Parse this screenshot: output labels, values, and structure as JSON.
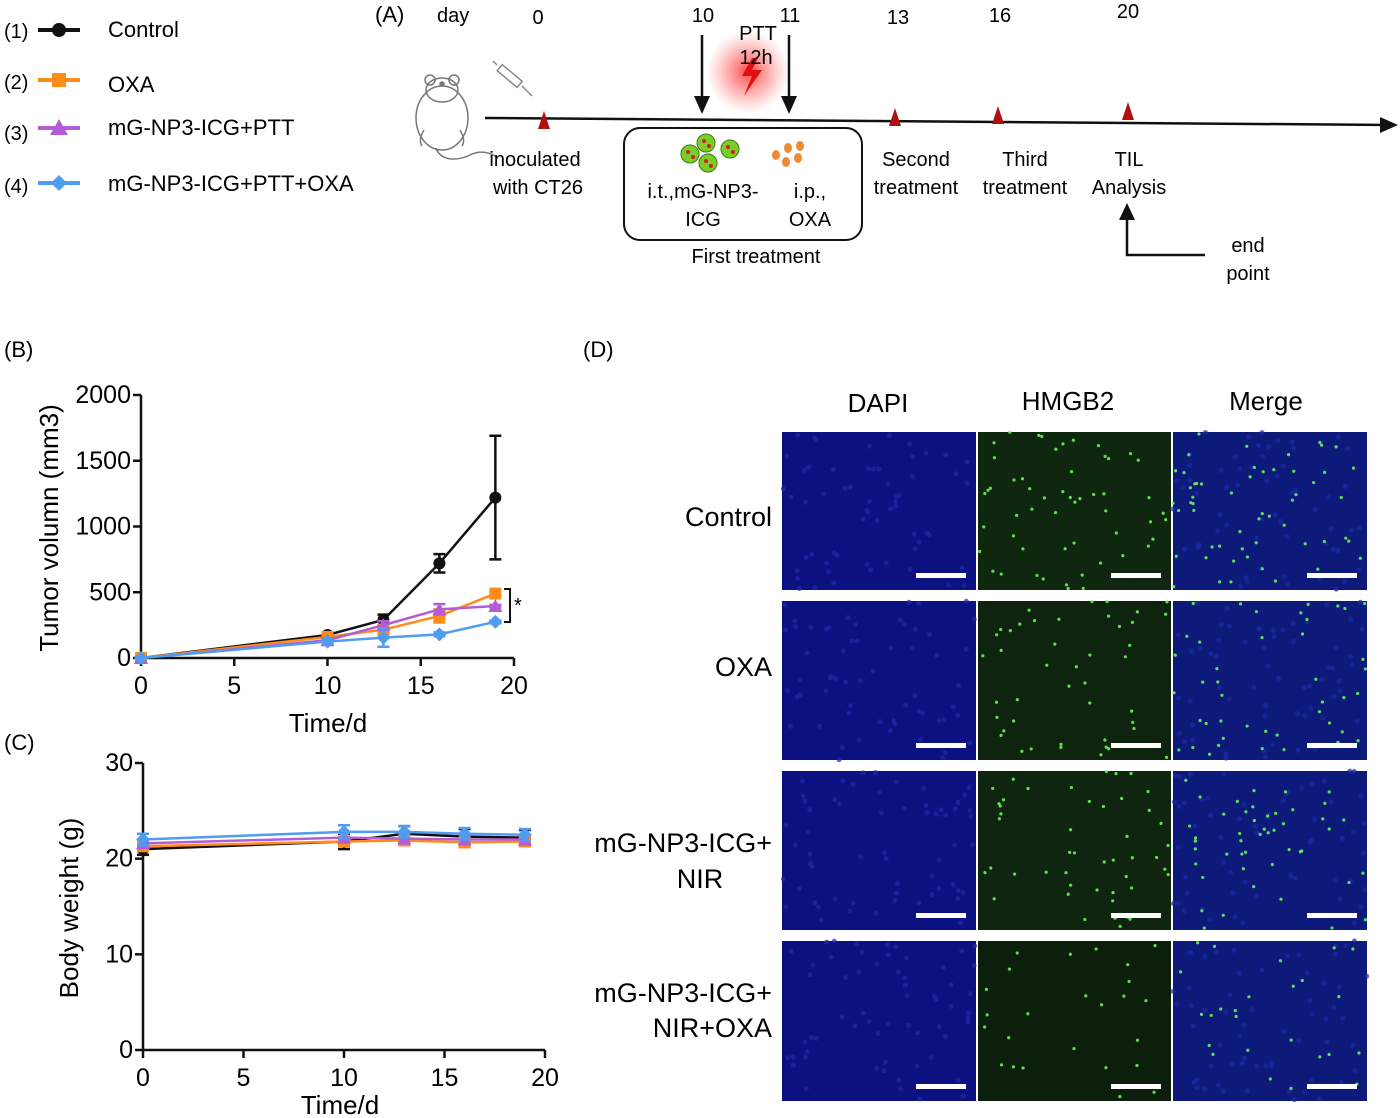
{
  "legend": {
    "items": [
      {
        "num": "(1)",
        "label": "Control",
        "color": "#111111",
        "marker": "circle"
      },
      {
        "num": "(2)",
        "label": "OXA",
        "color": "#ff8c1a",
        "marker": "square"
      },
      {
        "num": "(3)",
        "label": "mG-NP3-ICG+PTT",
        "color": "#b45cd6",
        "marker": "triangle"
      },
      {
        "num": "(4)",
        "label": "mG-NP3-ICG+PTT+OXA",
        "color": "#4f9cf0",
        "marker": "diamond"
      }
    ]
  },
  "panelA": {
    "label": "(A)",
    "day_label": "day",
    "days": [
      "0",
      "10",
      "11",
      "13",
      "16",
      "20"
    ],
    "ptt_label": "PTT",
    "ptt_time": "12h",
    "inoculated": [
      "inoculated",
      "with CT26"
    ],
    "box_it": [
      "i.t.,mG-NP3-",
      "ICG"
    ],
    "box_ip": [
      "i.p.,",
      "OXA"
    ],
    "first_treatment": "First treatment",
    "second": [
      "Second",
      "treatment"
    ],
    "third": [
      "Third",
      "treatment"
    ],
    "til": [
      "TIL",
      "Analysis"
    ],
    "endpoint": [
      "end",
      "point"
    ],
    "marker_color": "#b01010"
  },
  "chart_data": [
    {
      "panel": "(B)",
      "type": "line",
      "xlabel": "Time/d",
      "ylabel": "Tumor volumn (mm3)",
      "xlim": [
        0,
        20
      ],
      "ylim": [
        0,
        2000
      ],
      "xticks": [
        0,
        5,
        10,
        15,
        20
      ],
      "yticks": [
        0,
        500,
        1000,
        1500,
        2000
      ],
      "annotation": "*",
      "series": [
        {
          "name": "Control",
          "x": [
            0,
            10,
            13,
            16,
            19
          ],
          "y": [
            0,
            175,
            290,
            720,
            1220
          ],
          "err": [
            15,
            20,
            40,
            70,
            470
          ]
        },
        {
          "name": "OXA",
          "x": [
            0,
            10,
            13,
            16,
            19
          ],
          "y": [
            0,
            160,
            215,
            320,
            490
          ],
          "err": [
            10,
            15,
            30,
            50,
            15
          ]
        },
        {
          "name": "mG-NP3-ICG+PTT",
          "x": [
            0,
            10,
            13,
            16,
            19
          ],
          "y": [
            0,
            135,
            250,
            370,
            395
          ],
          "err": [
            10,
            15,
            30,
            40,
            10
          ]
        },
        {
          "name": "mG-NP3-ICG+PTT+OXA",
          "x": [
            0,
            10,
            13,
            16,
            19
          ],
          "y": [
            0,
            125,
            155,
            180,
            275
          ],
          "err": [
            10,
            15,
            70,
            15,
            10
          ]
        }
      ]
    },
    {
      "panel": "(C)",
      "type": "line",
      "xlabel": "Time/d",
      "ylabel": "Body weight (g)",
      "xlim": [
        0,
        20
      ],
      "ylim": [
        0,
        30
      ],
      "xticks": [
        0,
        5,
        10,
        15,
        20
      ],
      "yticks": [
        0,
        10,
        20,
        30
      ],
      "series": [
        {
          "name": "Control",
          "x": [
            0,
            10,
            13,
            16,
            19
          ],
          "y": [
            21.0,
            21.8,
            22.6,
            22.3,
            22.2
          ],
          "err": [
            0.6,
            0.8,
            0.8,
            0.8,
            0.8
          ]
        },
        {
          "name": "OXA",
          "x": [
            0,
            10,
            13,
            16,
            19
          ],
          "y": [
            21.3,
            21.8,
            21.9,
            21.7,
            21.8
          ],
          "err": [
            0.4,
            0.5,
            0.4,
            0.5,
            0.4
          ]
        },
        {
          "name": "mG-NP3-ICG+PTT",
          "x": [
            0,
            10,
            13,
            16,
            19
          ],
          "y": [
            21.6,
            22.2,
            22.1,
            22.0,
            22.0
          ],
          "err": [
            0.4,
            0.5,
            0.5,
            0.5,
            0.5
          ]
        },
        {
          "name": "mG-NP3-ICG+PTT+OXA",
          "x": [
            0,
            10,
            13,
            16,
            19
          ],
          "y": [
            22.0,
            22.8,
            22.8,
            22.6,
            22.5
          ],
          "err": [
            0.6,
            0.7,
            0.6,
            0.6,
            0.6
          ]
        }
      ]
    }
  ],
  "panelD": {
    "label": "(D)",
    "columns": [
      "DAPI",
      "HMGB2",
      "Merge"
    ],
    "rows": [
      [
        "Control"
      ],
      [
        "OXA"
      ],
      [
        "mG-NP3-ICG+",
        "NIR"
      ],
      [
        "mG-NP3-ICG+",
        "NIR+OXA"
      ]
    ],
    "green_density": [
      1.0,
      0.8,
      0.85,
      0.45
    ],
    "colors": {
      "dapi": "#0b1180",
      "hmgb2": "#0a1a0a",
      "merge": "#0d1a7a",
      "dot": "#6dff5a",
      "scalebar": "#ffffff"
    }
  }
}
